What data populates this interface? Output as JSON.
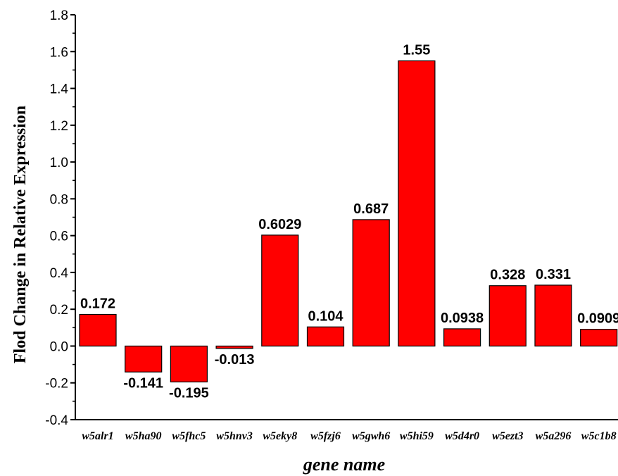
{
  "chart_data": {
    "type": "bar",
    "categories": [
      "w5alr1",
      "w5ha90",
      "w5fhc5",
      "w5hnv3",
      "w5eky8",
      "w5fzj6",
      "w5gwh6",
      "w5hi59",
      "w5d4r0",
      "w5ezt3",
      "w5a296",
      "w5c1b8"
    ],
    "values": [
      0.172,
      -0.141,
      -0.195,
      -0.013,
      0.6029,
      0.104,
      0.687,
      1.55,
      0.0938,
      0.328,
      0.331,
      0.0909
    ],
    "data_labels": [
      "0.172",
      "-0.141",
      "-0.195",
      "-0.013",
      "0.6029",
      "0.104",
      "0.687",
      "1.55",
      "0.0938",
      "0.328",
      "0.331",
      "0.0909"
    ],
    "title": "",
    "xlabel": "gene name",
    "ylabel": "Flod Change in Relative Expression",
    "ylim": [
      -0.4,
      1.8
    ],
    "yticks": [
      "-0.4",
      "-0.2",
      "0.0",
      "0.2",
      "0.4",
      "0.6",
      "0.8",
      "1.0",
      "1.2",
      "1.4",
      "1.6",
      "1.8"
    ],
    "bar_color": "#ff0000",
    "grid": false
  }
}
